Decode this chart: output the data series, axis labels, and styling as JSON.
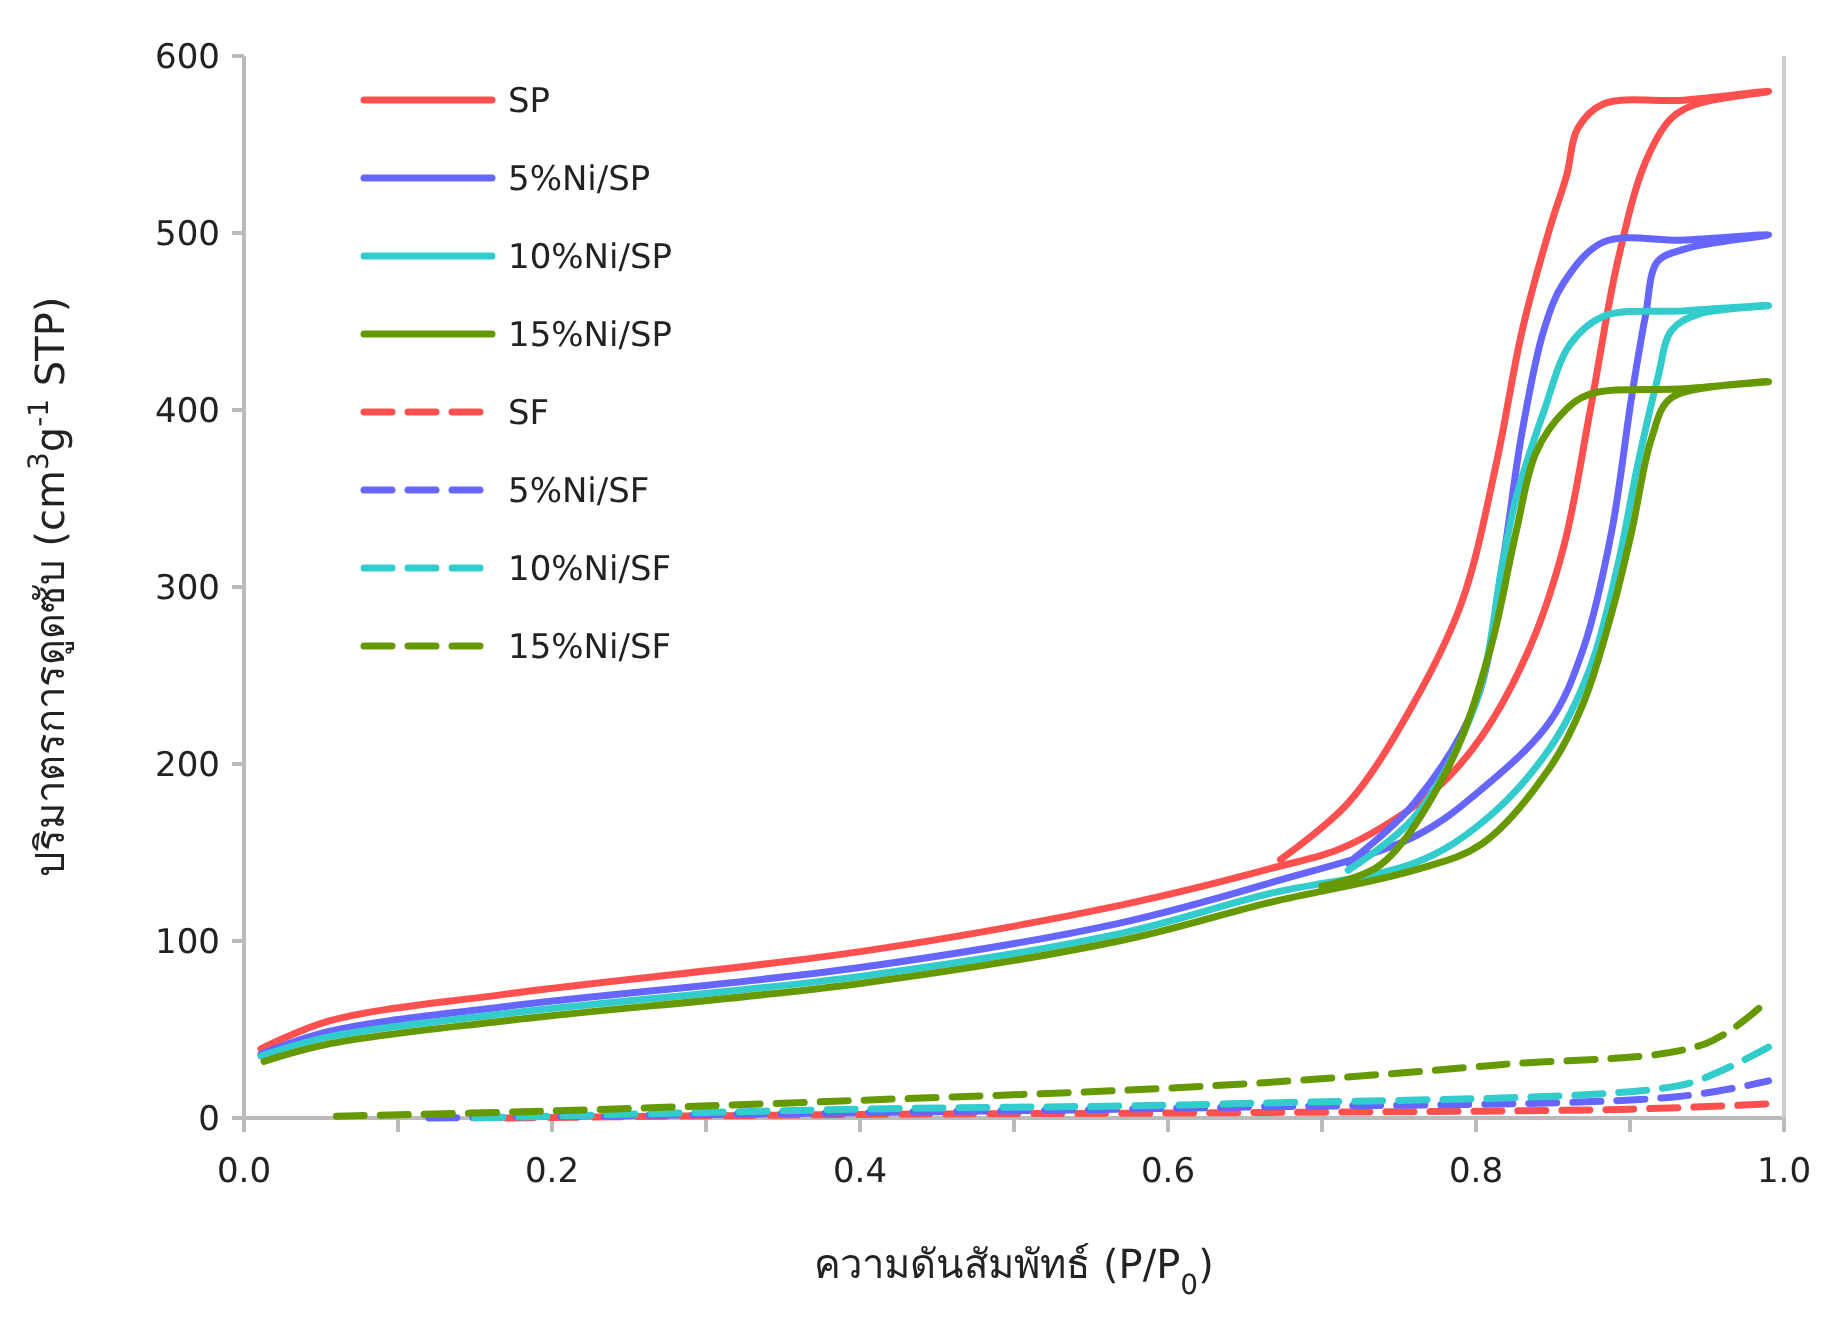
{
  "chart_data": {
    "type": "line",
    "xlabel": "ความดันสัมพัทธ์ (P/P$_{0}$)",
    "ylabel": "ปริมาตรการดูดซับ (cm$^{3}$g$^{-1}$ STP)",
    "xlim": [
      0,
      1
    ],
    "ylim": [
      0,
      600
    ],
    "xticks": [
      {
        "value": 0,
        "label": "0.0"
      },
      {
        "value": 0.1,
        "label": null
      },
      {
        "value": 0.2,
        "label": "0.2"
      },
      {
        "value": 0.3,
        "label": null
      },
      {
        "value": 0.4,
        "label": "0.4"
      },
      {
        "value": 0.5,
        "label": null
      },
      {
        "value": 0.6,
        "label": "0.6"
      },
      {
        "value": 0.7,
        "label": null
      },
      {
        "value": 0.8,
        "label": "0.8"
      },
      {
        "value": 0.9,
        "label": null
      },
      {
        "value": 1,
        "label": "1.0"
      }
    ],
    "yticks": [
      0,
      100,
      200,
      300,
      400,
      500,
      600
    ],
    "grid": false,
    "legend": "top left",
    "marker": "none",
    "series": [
      {
        "name": "SP",
        "color": "#ff5050",
        "line_style": "solid",
        "x": [
          0.011,
          0.056,
          0.17,
          0.4,
          0.568,
          0.667,
          0.717,
          0.774,
          0.804,
          0.835,
          0.857,
          0.874,
          0.892,
          0.91,
          0.927,
          0.944,
          0.99,
          0.935,
          0.883,
          0.866,
          0.859,
          0.848,
          0.83,
          0.813,
          0.791,
          0.76,
          0.717,
          0.673
        ],
        "values": [
          39,
          55,
          70,
          94,
          120,
          141,
          154,
          186,
          216,
          266,
          323,
          399,
          484,
          540,
          565,
          573,
          580,
          575,
          573,
          559,
          533,
          503,
          445,
          369,
          292,
          235,
          178,
          146
        ]
      },
      {
        "name": "5%Ni/SP",
        "color": "#6666ff",
        "line_style": "solid",
        "x": [
          0.011,
          0.056,
          0.17,
          0.4,
          0.568,
          0.667,
          0.76,
          0.804,
          0.848,
          0.87,
          0.888,
          0.901,
          0.91,
          0.918,
          0.936,
          0.952,
          0.99,
          0.935,
          0.883,
          0.857,
          0.844,
          0.83,
          0.817,
          0.8,
          0.76,
          0.717
        ],
        "values": [
          36,
          49,
          63,
          85,
          110,
          133,
          159,
          186,
          224,
          266,
          331,
          407,
          453,
          484,
          491,
          494,
          499,
          496,
          495,
          472,
          445,
          388,
          312,
          235,
          178,
          144
        ]
      },
      {
        "name": "10%Ni/SP",
        "color": "#33cccc",
        "line_style": "solid",
        "x": [
          0.011,
          0.056,
          0.17,
          0.4,
          0.568,
          0.667,
          0.76,
          0.804,
          0.848,
          0.874,
          0.892,
          0.905,
          0.918,
          0.927,
          0.944,
          0.99,
          0.935,
          0.883,
          0.861,
          0.844,
          0.826,
          0.817,
          0.8,
          0.76,
          0.717
        ],
        "values": [
          35,
          46,
          59,
          80,
          104,
          127,
          144,
          167,
          209,
          254,
          312,
          369,
          418,
          445,
          454,
          459,
          456,
          453,
          437,
          399,
          350,
          312,
          235,
          170,
          140
        ]
      },
      {
        "name": "15%Ni/SP",
        "color": "#669900",
        "line_style": "solid",
        "x": [
          0.013,
          0.056,
          0.17,
          0.4,
          0.568,
          0.667,
          0.76,
          0.804,
          0.848,
          0.87,
          0.888,
          0.901,
          0.914,
          0.927,
          0.99,
          0.935,
          0.874,
          0.857,
          0.839,
          0.826,
          0.809,
          0.782,
          0.738,
          0.7
        ],
        "values": [
          32,
          42,
          55,
          76,
          100,
          122,
          140,
          155,
          198,
          235,
          285,
          331,
          384,
          407,
          416,
          412,
          409,
          399,
          376,
          331,
          264,
          198,
          143,
          131
        ]
      },
      {
        "name": "SF",
        "color": "#ff5050",
        "line_style": "dashed",
        "x": [
          0.17,
          0.4,
          0.64,
          0.9,
          0.99
        ],
        "values": [
          0,
          2,
          3,
          5,
          8
        ]
      },
      {
        "name": "5%Ni/SF",
        "color": "#6666ff",
        "line_style": "dashed",
        "x": [
          0.12,
          0.4,
          0.64,
          0.93,
          0.99
        ],
        "values": [
          0,
          3,
          6,
          12,
          21
        ]
      },
      {
        "name": "10%Ni/SF",
        "color": "#33cccc",
        "line_style": "dashed",
        "x": [
          0.15,
          0.4,
          0.64,
          0.93,
          0.96,
          0.99
        ],
        "values": [
          0,
          5,
          8,
          18,
          27,
          40
        ]
      },
      {
        "name": "15%Ni/SF",
        "color": "#669900",
        "line_style": "dashed",
        "x": [
          0.06,
          0.2,
          0.4,
          0.625,
          0.814,
          0.949,
          0.99
        ],
        "values": [
          1,
          4,
          10,
          18,
          30,
          42,
          67
        ]
      }
    ]
  }
}
